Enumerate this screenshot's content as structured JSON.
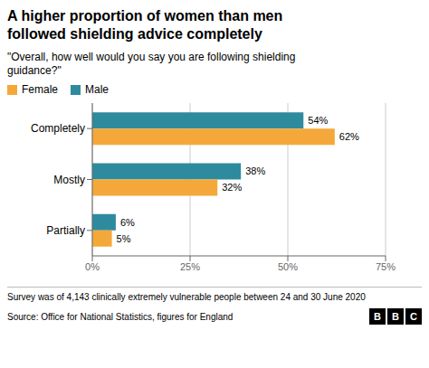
{
  "chart_data": {
    "type": "bar",
    "orientation": "horizontal",
    "title": "A higher proportion of women than men\nfollowed shielding advice completely",
    "subtitle": "\"Overall, how well would you say you are following shielding\nguidance?\"",
    "categories": [
      "Completely",
      "Mostly",
      "Partially"
    ],
    "series": [
      {
        "name": "Female",
        "color": "#F5A83A",
        "values": [
          62,
          32,
          5
        ],
        "value_labels": [
          "62%",
          "32%",
          "5%"
        ]
      },
      {
        "name": "Male",
        "color": "#2E8B9E",
        "values": [
          54,
          38,
          6
        ],
        "value_labels": [
          "54%",
          "38%",
          "6%"
        ]
      }
    ],
    "xlim": [
      0,
      75
    ],
    "xticks": [
      {
        "value": 0,
        "label": "0%"
      },
      {
        "value": 25,
        "label": "25%"
      },
      {
        "value": 50,
        "label": "50%"
      },
      {
        "value": 75,
        "label": "75%"
      }
    ],
    "grid": true,
    "legend": "upper left",
    "data_labels": true,
    "footnote": "Survey was of 4,143 clinically extremely vulnerable people between 24 and 30 June 2020",
    "source": "Source: Office for National Statistics, figures for England",
    "logo": "BBC"
  }
}
